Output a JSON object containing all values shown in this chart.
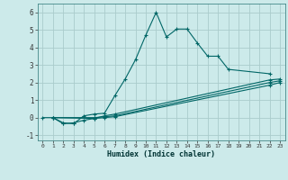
{
  "background_color": "#cceaea",
  "grid_color": "#aacccc",
  "line_color": "#006666",
  "xlabel": "Humidex (Indice chaleur)",
  "xlim": [
    -0.5,
    23.5
  ],
  "ylim": [
    -1.3,
    6.5
  ],
  "xticks": [
    0,
    1,
    2,
    3,
    4,
    5,
    6,
    7,
    8,
    9,
    10,
    11,
    12,
    13,
    14,
    15,
    16,
    17,
    18,
    19,
    20,
    21,
    22,
    23
  ],
  "yticks": [
    -1,
    0,
    1,
    2,
    3,
    4,
    5,
    6
  ],
  "lines": [
    {
      "x": [
        0,
        1,
        2,
        3,
        4,
        5,
        6,
        7,
        8,
        9,
        10,
        11,
        12,
        13,
        14,
        15,
        16,
        17,
        18,
        22
      ],
      "y": [
        0.0,
        0.0,
        -0.3,
        -0.35,
        0.1,
        0.2,
        0.25,
        1.25,
        2.2,
        3.3,
        4.7,
        6.0,
        4.6,
        5.05,
        5.05,
        4.25,
        3.5,
        3.5,
        2.75,
        2.5
      ]
    },
    {
      "x": [
        1,
        2,
        3,
        4,
        5,
        6,
        7,
        22,
        23
      ],
      "y": [
        0.0,
        -0.35,
        -0.3,
        -0.15,
        -0.05,
        0.1,
        0.2,
        2.15,
        2.2
      ]
    },
    {
      "x": [
        1,
        5,
        6,
        7,
        22,
        23
      ],
      "y": [
        0.0,
        0.0,
        0.05,
        0.1,
        2.0,
        2.1
      ]
    },
    {
      "x": [
        1,
        5,
        6,
        7,
        22,
        23
      ],
      "y": [
        0.0,
        -0.05,
        0.0,
        0.05,
        1.85,
        2.0
      ]
    }
  ]
}
